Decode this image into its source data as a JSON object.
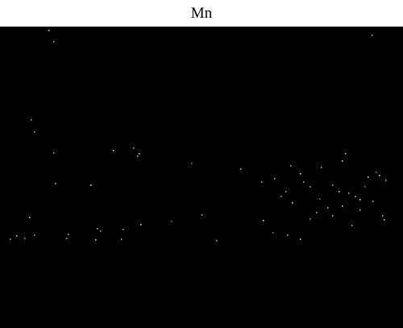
{
  "title": "Mn",
  "colors": {
    "background": "#000000",
    "header": "#ffffff",
    "signal": "#ffffff",
    "signal_alt": "#3fff3f"
  }
}
